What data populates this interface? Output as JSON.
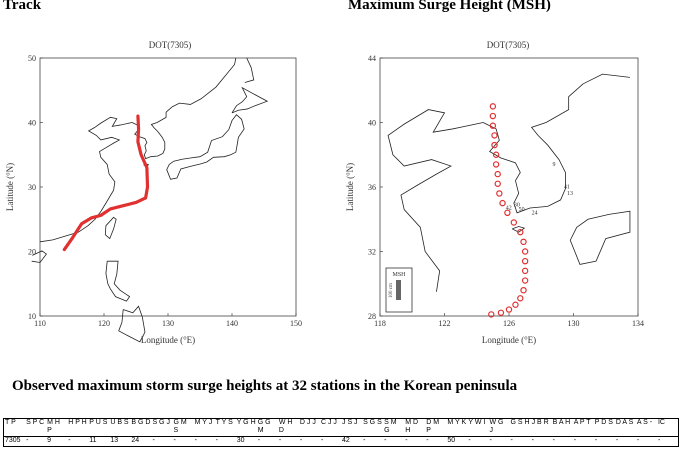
{
  "headings": {
    "track": "Track",
    "msh": "Maximum Surge Height (MSH)",
    "table_title": "Observed maximum storm surge heights at 32 stations in the Korean peninsula"
  },
  "map_track": {
    "title": "DOT(7305)",
    "xlabel": "Longitude (°E)",
    "ylabel": "Latitude (°N)",
    "xlim": [
      110,
      150
    ],
    "ylim": [
      10,
      50
    ],
    "xticks": [
      "110",
      "120",
      "130",
      "140",
      "150"
    ],
    "yticks": [
      "10",
      "20",
      "30",
      "40",
      "50"
    ],
    "track_color": "#e03030",
    "track_lonlat": [
      [
        113.8,
        20.3
      ],
      [
        115,
        22
      ],
      [
        116.5,
        24.3
      ],
      [
        118,
        25.2
      ],
      [
        119.5,
        25.6
      ],
      [
        121,
        26.6
      ],
      [
        123,
        27.1
      ],
      [
        125,
        27.6
      ],
      [
        126.5,
        28.3
      ],
      [
        126.8,
        30
      ],
      [
        126.7,
        33
      ],
      [
        125.8,
        35
      ],
      [
        125.3,
        37
      ],
      [
        125.4,
        39
      ],
      [
        125.3,
        41
      ]
    ]
  },
  "map_msh": {
    "title": "DOT(7305)",
    "xlabel": "Longitude (°E)",
    "ylabel": "Latitude (°N)",
    "xlim": [
      118,
      134
    ],
    "ylim": [
      28,
      44
    ],
    "xticks": [
      "118",
      "122",
      "126",
      "130",
      "134"
    ],
    "yticks": [
      "28",
      "32",
      "36",
      "40",
      "44"
    ],
    "circle_color": "#e03030",
    "track_lonlat": [
      [
        124.9,
        28.1
      ],
      [
        125.5,
        28.2
      ],
      [
        126.0,
        28.4
      ],
      [
        126.4,
        28.7
      ],
      [
        126.7,
        29.1
      ],
      [
        126.9,
        29.6
      ],
      [
        127.0,
        30.2
      ],
      [
        127.0,
        30.8
      ],
      [
        127.0,
        31.4
      ],
      [
        127.0,
        32.0
      ],
      [
        126.9,
        32.6
      ],
      [
        126.7,
        33.2
      ],
      [
        126.3,
        33.8
      ],
      [
        125.9,
        34.4
      ],
      [
        125.6,
        35.0
      ],
      [
        125.4,
        35.6
      ],
      [
        125.3,
        36.2
      ],
      [
        125.3,
        36.8
      ],
      [
        125.2,
        37.4
      ],
      [
        125.2,
        38.0
      ],
      [
        125.1,
        38.6
      ],
      [
        125.1,
        39.2
      ],
      [
        125.0,
        39.8
      ],
      [
        125.0,
        40.4
      ],
      [
        125.0,
        41.0
      ]
    ],
    "legend_label": "MSH",
    "legend_scale": "100 cm",
    "station_labels": [
      "9",
      "41",
      "13",
      "42",
      "30",
      "50",
      "24"
    ]
  },
  "stations_table": {
    "headers": [
      "T P",
      "S P C",
      "M H P",
      "H P H",
      "P U S",
      "U B S",
      "B G D",
      "S G J",
      "G M S",
      "M Y J",
      "T Y S",
      "Y G H",
      "G G M",
      "W H D",
      "D J J",
      "C J J",
      "J S J",
      "S G S",
      "S M G",
      "M D H",
      "D M P",
      "M Y K",
      "Y W I",
      "W G J",
      "G S H",
      "J B R",
      "B A H",
      "A P T",
      "P D S",
      "D A S",
      "A S -",
      "IC"
    ],
    "values": [
      "7305",
      "-",
      "9",
      "-",
      "11",
      "13",
      "24",
      "-",
      "-",
      "-",
      "-",
      "30",
      "-",
      "-",
      "-",
      "-",
      "42",
      "-",
      "-",
      "-",
      "-",
      "50",
      "-",
      "-",
      "-",
      "-",
      "-",
      "-",
      "-",
      "-",
      "-",
      "-"
    ]
  }
}
